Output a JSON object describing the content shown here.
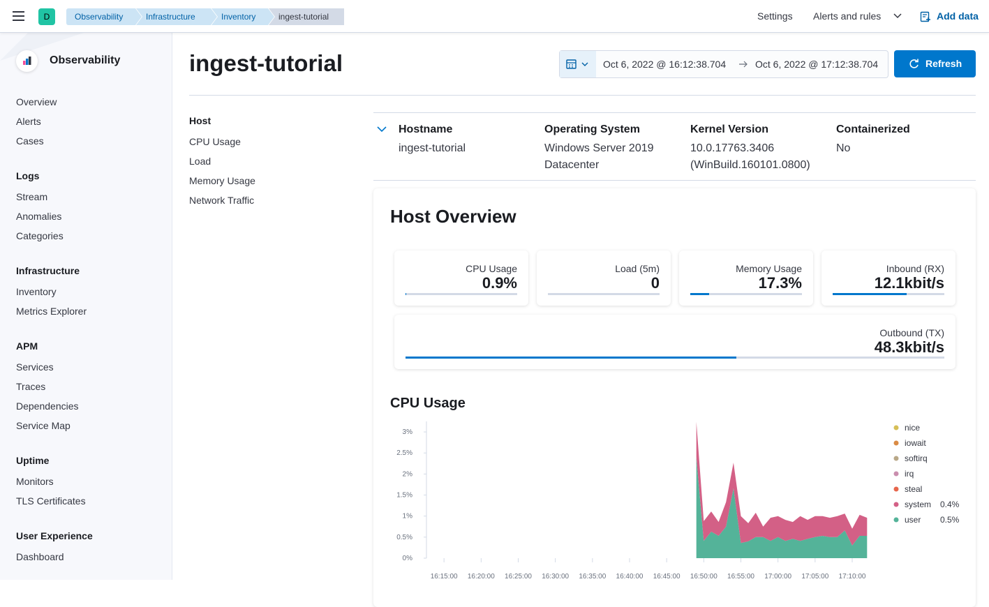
{
  "header": {
    "avatar": "D",
    "breadcrumbs": [
      "Observability",
      "Infrastructure",
      "Inventory",
      "ingest-tutorial"
    ],
    "links": [
      "Settings",
      "Alerts and rules",
      "Add data"
    ]
  },
  "sidebar": {
    "title": "Observability",
    "items": [
      "Overview",
      "Alerts",
      "Cases"
    ],
    "sections": [
      {
        "title": "Logs",
        "items": [
          "Stream",
          "Anomalies",
          "Categories"
        ]
      },
      {
        "title": "Infrastructure",
        "items": [
          "Inventory",
          "Metrics Explorer"
        ]
      },
      {
        "title": "APM",
        "items": [
          "Services",
          "Traces",
          "Dependencies",
          "Service Map"
        ]
      },
      {
        "title": "Uptime",
        "items": [
          "Monitors",
          "TLS Certificates"
        ]
      },
      {
        "title": "User Experience",
        "items": [
          "Dashboard"
        ]
      }
    ]
  },
  "page": {
    "title": "ingest-tutorial",
    "date_start": "Oct 6, 2022 @ 16:12:38.704",
    "date_end": "Oct 6, 2022 @ 17:12:38.704",
    "refresh": "Refresh"
  },
  "toc": [
    "Host",
    "CPU Usage",
    "Load",
    "Memory Usage",
    "Network Traffic"
  ],
  "metadata": [
    {
      "label": "Hostname",
      "value": "ingest-tutorial"
    },
    {
      "label": "Operating System",
      "value": "Windows Server 2019 Datacenter"
    },
    {
      "label": "Kernel Version",
      "value": "10.0.17763.3406 (WinBuild.160101.0800)"
    },
    {
      "label": "Containerized",
      "value": "No"
    }
  ],
  "overview": {
    "title": "Host Overview",
    "cards": [
      {
        "label": "CPU Usage",
        "value": "0.9%"
      },
      {
        "label": "Load (5m)",
        "value": "0"
      },
      {
        "label": "Memory Usage",
        "value": "17.3%"
      },
      {
        "label": "Inbound (RX)",
        "value": "12.1kbit/s"
      },
      {
        "label": "Outbound (TX)",
        "value": "48.3kbit/s"
      }
    ]
  },
  "chart_data": {
    "type": "area",
    "stacked": true,
    "title": "CPU Usage",
    "x": [
      "16:49:00",
      "16:50:00",
      "16:51:00",
      "16:52:00",
      "16:53:00",
      "16:54:00",
      "16:55:00",
      "16:56:00",
      "16:57:00",
      "16:58:00",
      "16:59:00",
      "17:00:00",
      "17:01:00",
      "17:02:00",
      "17:03:00",
      "17:04:00",
      "17:05:00",
      "17:06:00",
      "17:07:00",
      "17:08:00",
      "17:09:00",
      "17:10:00",
      "17:11:00",
      "17:12:00"
    ],
    "xlim": [
      "16:12:38",
      "17:12:38"
    ],
    "xticks": [
      "16:15:00",
      "16:20:00",
      "16:25:00",
      "16:30:00",
      "16:35:00",
      "16:40:00",
      "16:45:00",
      "16:50:00",
      "16:55:00",
      "17:00:00",
      "17:05:00",
      "17:10:00"
    ],
    "ylim": [
      0,
      3.25
    ],
    "yticks": [
      {
        "value": 0,
        "label": "0%"
      },
      {
        "value": 0.5,
        "label": "0.5%"
      },
      {
        "value": 1,
        "label": "1%"
      },
      {
        "value": 1.5,
        "label": "1.5%"
      },
      {
        "value": 2,
        "label": "2%"
      },
      {
        "value": 2.5,
        "label": "2.5%"
      },
      {
        "value": 3,
        "label": "3%"
      }
    ],
    "series": [
      {
        "name": "nice",
        "color": "#d6bf57"
      },
      {
        "name": "iowait",
        "color": "#da8b45"
      },
      {
        "name": "softirq",
        "color": "#b9a888"
      },
      {
        "name": "irq",
        "color": "#ca8eae"
      },
      {
        "name": "steal",
        "color": "#e7664c"
      },
      {
        "name": "system",
        "color": "#d36086",
        "legend_value": "0.4%",
        "values": [
          0.84,
          0.47,
          0.48,
          0.33,
          0.58,
          0.61,
          0.64,
          0.43,
          0.58,
          0.25,
          0.55,
          0.5,
          0.5,
          0.4,
          0.59,
          0.45,
          0.5,
          0.47,
          0.46,
          0.5,
          0.4,
          0.4,
          0.5,
          0.43
        ]
      },
      {
        "name": "user",
        "color": "#54b399",
        "legend_value": "0.5%",
        "values": [
          2.4,
          0.41,
          0.63,
          0.53,
          0.75,
          1.66,
          0.36,
          0.4,
          0.5,
          0.5,
          0.41,
          0.5,
          0.41,
          0.46,
          0.41,
          0.46,
          0.5,
          0.53,
          0.5,
          0.5,
          0.66,
          0.3,
          0.53,
          0.53
        ]
      }
    ]
  }
}
